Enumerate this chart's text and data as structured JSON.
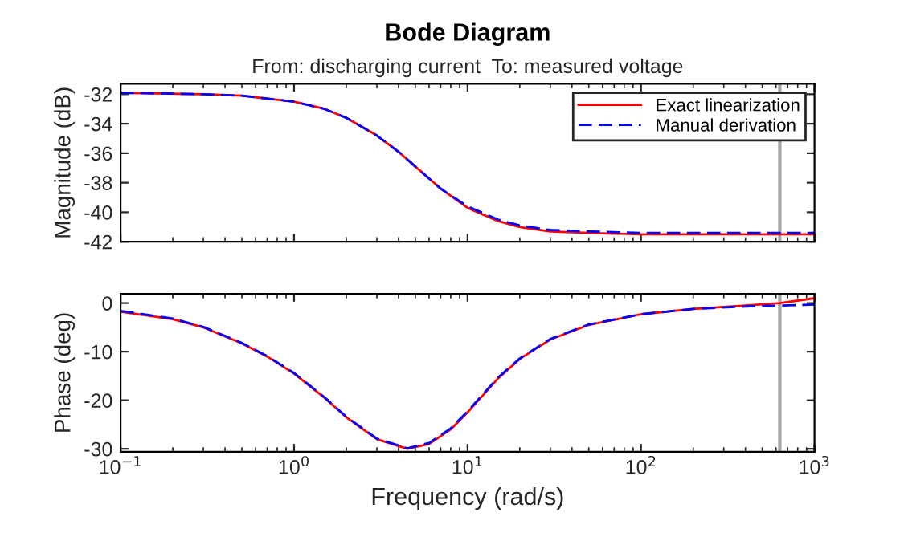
{
  "chart_data": [
    {
      "type": "line",
      "title": "Bode Diagram",
      "subtitle": "From: discharging current  To: measured voltage",
      "ylabel": "Magnitude (dB)",
      "log": "x",
      "legend": "top right",
      "tick_labels": "y",
      "xlim": [
        0.1,
        1000
      ],
      "xticks": [
        {
          "value": 0.1,
          "label": null
        },
        {
          "value": 1,
          "label": null
        },
        {
          "value": 10,
          "label": null
        },
        {
          "value": 100,
          "label": null
        },
        {
          "value": 1000,
          "label": null
        }
      ],
      "ylim": [
        -42,
        -31.3
      ],
      "yticks": [
        -42,
        -40,
        -38,
        -36,
        -34,
        -32
      ],
      "ref_lines": [
        {
          "axis": "x",
          "value": 631,
          "color": "#a6a6a6"
        }
      ],
      "series": [
        {
          "name": "Exact linearization",
          "color": "#ff0000",
          "line_style": "solid",
          "x": [
            0.1,
            0.3,
            0.5,
            1,
            1.5,
            2,
            3,
            4,
            5,
            7,
            10,
            15,
            20,
            30,
            50,
            100,
            1000
          ],
          "values": [
            -31.9,
            -32.0,
            -32.1,
            -32.5,
            -33.0,
            -33.6,
            -34.8,
            -35.9,
            -36.9,
            -38.4,
            -39.7,
            -40.6,
            -41.0,
            -41.3,
            -41.4,
            -41.5,
            -41.5
          ]
        },
        {
          "name": "Manual derivation",
          "color": "#0000ff",
          "line_style": "dashed",
          "x": [
            0.1,
            0.3,
            0.5,
            1,
            1.5,
            2,
            3,
            4,
            5,
            7,
            10,
            15,
            20,
            30,
            50,
            100,
            1000
          ],
          "values": [
            -31.9,
            -32.0,
            -32.1,
            -32.5,
            -33.0,
            -33.6,
            -34.8,
            -35.9,
            -36.9,
            -38.4,
            -39.6,
            -40.5,
            -40.9,
            -41.2,
            -41.3,
            -41.4,
            -41.4
          ]
        }
      ]
    },
    {
      "type": "line",
      "ylabel": "Phase (deg)",
      "xlabel": "Frequency (rad/s)",
      "log": "x",
      "xlim": [
        0.1,
        1000
      ],
      "xticks": [
        {
          "value": 0.1,
          "label": "10$^{−1}$"
        },
        {
          "value": 1,
          "label": "10$^{0}$"
        },
        {
          "value": 10,
          "label": "10$^{1}$"
        },
        {
          "value": 100,
          "label": "10$^{2}$"
        },
        {
          "value": 1000,
          "label": "10$^{3}$"
        }
      ],
      "ylim": [
        -30.6,
        1.9
      ],
      "yticks": [
        -30,
        -20,
        -10,
        0
      ],
      "ref_lines": [
        {
          "axis": "x",
          "value": 631,
          "color": "#a6a6a6"
        }
      ],
      "series": [
        {
          "color": "#ff0000",
          "line_style": "solid",
          "x": [
            0.1,
            0.2,
            0.3,
            0.5,
            0.7,
            1,
            1.5,
            2,
            3,
            4.5,
            6,
            8,
            10,
            15,
            20,
            30,
            50,
            100,
            200,
            400,
            631,
            1000
          ],
          "values": [
            -1.8,
            -3.3,
            -5,
            -8.3,
            -11,
            -14.5,
            -19.5,
            -23.5,
            -28,
            -30,
            -29,
            -26,
            -22.5,
            -15.5,
            -11.5,
            -7.5,
            -4.5,
            -2.3,
            -1.2,
            -0.5,
            0,
            1.0
          ]
        },
        {
          "color": "#0000ff",
          "line_style": "dashed",
          "x": [
            0.1,
            0.2,
            0.3,
            0.5,
            0.7,
            1,
            1.5,
            2,
            3,
            4.5,
            6,
            8,
            10,
            15,
            20,
            30,
            50,
            100,
            200,
            400,
            631,
            1000
          ],
          "values": [
            -1.6,
            -3.2,
            -4.9,
            -8.2,
            -10.9,
            -14.4,
            -19.4,
            -23.4,
            -27.9,
            -29.9,
            -28.8,
            -25.8,
            -22.3,
            -15.3,
            -11.4,
            -7.4,
            -4.4,
            -2.3,
            -1.2,
            -0.7,
            -0.5,
            -0.3
          ]
        }
      ]
    }
  ]
}
